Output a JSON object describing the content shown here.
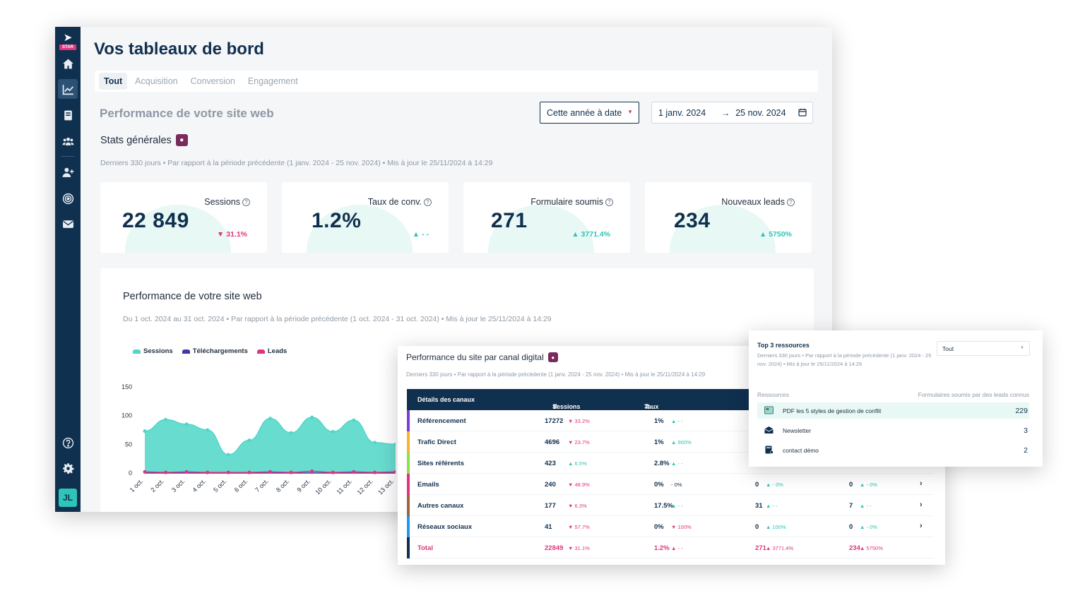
{
  "app": {
    "logo_text": "STAR",
    "avatar_initials": "JL",
    "sidebar_icons": [
      "home-icon",
      "chart-icon",
      "book-icon",
      "users-icon",
      "add-user-icon",
      "target-icon",
      "mail-icon",
      "help-icon",
      "gear-icon"
    ]
  },
  "header": {
    "title": "Vos tableaux de bord",
    "tabs": [
      {
        "label": "Tout",
        "active": true
      },
      {
        "label": "Acquisition",
        "active": false
      },
      {
        "label": "Conversion",
        "active": false
      },
      {
        "label": "Engagement",
        "active": false
      }
    ]
  },
  "overview": {
    "section_title": "Performance de votre site web",
    "period_select": "Cette année à date",
    "date_from": "1 janv. 2024",
    "date_to": "25 nov. 2024",
    "stats_title": "Stats générales",
    "stats_meta": "Derniers 330 jours • Par rapport à la période précédente (1 janv. 2024 - 25 nov. 2024) • Mis à jour le 25/11/2024 à 14:29",
    "kpis": [
      {
        "label": "Sessions",
        "value": "22 849",
        "delta": "31.1%",
        "trend": "down"
      },
      {
        "label": "Taux de conv.",
        "value": "1.2%",
        "delta": "- -",
        "trend": "up"
      },
      {
        "label": "Formulaire soumis",
        "value": "271",
        "delta": "3771.4%",
        "trend": "up"
      },
      {
        "label": "Nouveaux leads",
        "value": "234",
        "delta": "5750%",
        "trend": "up"
      }
    ]
  },
  "performance": {
    "title": "Performance de votre site web",
    "meta": "Du 1 oct. 2024 au 31 oct. 2024 • Par rapport à la période précédente (1 oct. 2024 - 31 oct. 2024) • Mis à jour le 25/11/2024 à 14:29"
  },
  "chart_data": {
    "type": "area",
    "x": [
      "1 oct.",
      "2 oct.",
      "3 oct.",
      "4 oct.",
      "5 oct.",
      "6 oct.",
      "7 oct.",
      "8 oct.",
      "9 oct.",
      "10 oct.",
      "11 oct.",
      "12 oct.",
      "13 oct."
    ],
    "series": [
      {
        "name": "Sessions",
        "color": "#4fd6c8",
        "values": [
          73,
          93,
          85,
          75,
          32,
          57,
          95,
          70,
          97,
          72,
          92,
          53,
          50
        ]
      },
      {
        "name": "Téléchargements",
        "color": "#3d3aa8",
        "values": [
          0,
          0,
          0,
          0,
          0,
          0,
          0,
          0,
          0,
          0,
          0,
          0,
          0
        ]
      },
      {
        "name": "Leads",
        "color": "#e0357d",
        "values": [
          2,
          1,
          2,
          1,
          1,
          1,
          2,
          1,
          3,
          1,
          2,
          1,
          2
        ]
      }
    ],
    "yticks": [
      0,
      50,
      100,
      150
    ],
    "ylim": [
      0,
      150
    ],
    "xlabel": "",
    "ylabel": "",
    "legend_position": "top-left",
    "grid": false
  },
  "channels": {
    "title": "Performance du site par canal digital",
    "meta": "Derniers 330 jours • Par rapport à la période précédente (1 janv. 2024 - 25 nov. 2024) • Mis à jour le 25/11/2024 à 14:29",
    "headers": [
      "Détails des canaux",
      "Sessions",
      "Taux de conv."
    ],
    "rows": [
      {
        "name": "Référencement",
        "color": "#7b3fd6",
        "sessions": "17272",
        "s_delta": "33.2%",
        "s_trend": "down",
        "conv": "1%",
        "c_delta": "- -",
        "c_trend": "up",
        "c3": "",
        "c3_delta": "",
        "c4": "",
        "c4_delta": ""
      },
      {
        "name": "Trafic Direct",
        "color": "#f7b52c",
        "sessions": "4696",
        "s_delta": "23.7%",
        "s_trend": "down",
        "conv": "1%",
        "c_delta": "900%",
        "c_trend": "up",
        "c3": "",
        "c3_delta": "",
        "c4": "",
        "c4_delta": ""
      },
      {
        "name": "Sites référents",
        "color": "#8be04e",
        "sessions": "423",
        "s_delta": "6.5%",
        "s_trend": "up",
        "conv": "2.8%",
        "c_delta": "- -",
        "c_trend": "up",
        "c3": "",
        "c3_delta": "",
        "c4": "",
        "c4_delta": ""
      },
      {
        "name": "Emails",
        "color": "#e0357d",
        "sessions": "240",
        "s_delta": "48.9%",
        "s_trend": "down",
        "conv": "0%",
        "c_delta": "- 0%",
        "c_trend": "flat",
        "c3": "0",
        "c3_delta": "- 0%",
        "c4": "0",
        "c4_delta": "- 0%"
      },
      {
        "name": "Autres canaux",
        "color": "#a0643c",
        "sessions": "177",
        "s_delta": "6.3%",
        "s_trend": "down",
        "conv": "17.5%",
        "c_delta": "- -",
        "c_trend": "up",
        "c3": "31",
        "c3_delta": "- -",
        "c4": "7",
        "c4_delta": "- -"
      },
      {
        "name": "Réseaux sociaux",
        "color": "#2196f3",
        "sessions": "41",
        "s_delta": "57.7%",
        "s_trend": "down",
        "conv": "0%",
        "c_delta": "100%",
        "c_trend": "down",
        "c3": "0",
        "c3_delta": "100%",
        "c4": "0",
        "c4_delta": "- 0%"
      }
    ],
    "total": {
      "name": "Total",
      "color": "#10304f",
      "sessions": "22849",
      "s_delta": "31.1%",
      "conv": "1.2%",
      "c_delta": "- -",
      "c3": "271",
      "c3_delta": "3771.4%",
      "c4": "234",
      "c4_delta": "5750%"
    }
  },
  "resources": {
    "title": "Top 3 ressources",
    "meta": "Derniers 330 jours • Par rapport à la période précédente (1 janv. 2024 - 25 nov. 2024) • Mis à jour le 25/11/2024 à 14:26",
    "filter": "Tout",
    "col_left": "Ressources",
    "col_right": "Formulaires soumis par des leads connus",
    "items": [
      {
        "name": "PDF les 5 styles de gestion de conflit",
        "count": "229",
        "icon": "pdf-icon"
      },
      {
        "name": "Newsletter",
        "count": "3",
        "icon": "newsletter-icon"
      },
      {
        "name": "contact démo",
        "count": "2",
        "icon": "form-icon"
      }
    ]
  }
}
